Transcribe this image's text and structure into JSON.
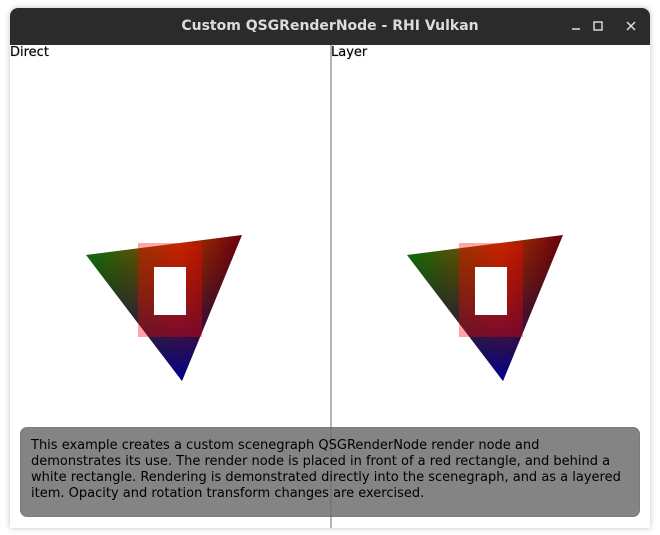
{
  "window": {
    "title": "Custom QSGRenderNode - RHI Vulkan",
    "controls": {
      "minimize_icon": "minimize-icon",
      "maximize_icon": "maximize-icon",
      "close_icon": "close-icon"
    }
  },
  "panels": {
    "left_label": "Direct",
    "right_label": "Layer"
  },
  "scene_colors": {
    "red_rect": "#ff0000",
    "white_rect": "#ffffff",
    "triangle_vertex_green": "#008000",
    "triangle_vertex_red": "#ff0000",
    "triangle_vertex_blue": "#000080"
  },
  "info": {
    "text": "This example creates a custom scenegraph QSGRenderNode render node and demonstrates its use. The render node is placed in front of a red rectangle, and behind a white rectangle. Rendering is demonstrated directly into the scenegraph, and as a layered item. Opacity and rotation transform changes are exercised."
  }
}
